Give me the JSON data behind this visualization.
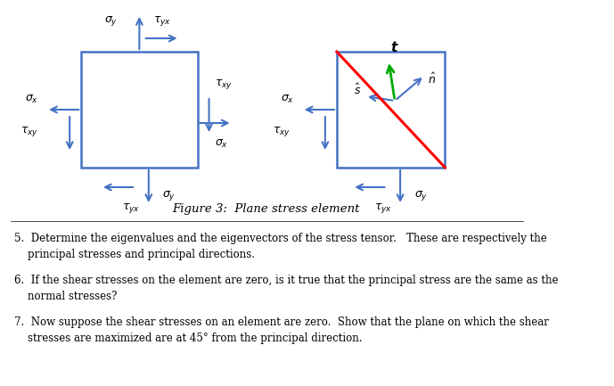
{
  "fig_width": 6.89,
  "fig_height": 4.33,
  "bg_color": "#ffffff",
  "arrow_color": "#4472C4",
  "box_color": "#4472C4",
  "red_line_color": "#FF0000",
  "green_arrow_color": "#00AA00",
  "blue_arrow_color": "#4472C4",
  "text_color": "#000000",
  "figure_caption": "Figure 3:  Plane stress element",
  "item5": "5.  Determine the eigenvalues and the eigenvectors of the stress tensor.   These are respectively the\n    principal stresses and principal directions.",
  "item6": "6.  If the shear stresses on the element are zero, is it true that the principal stress are the same as the\n    normal stresses?",
  "item7": "7.  Now suppose the shear stresses on an element are zero.  Show that the plane on which the shear\n    stresses are maximized are at 45° from the principal direction."
}
